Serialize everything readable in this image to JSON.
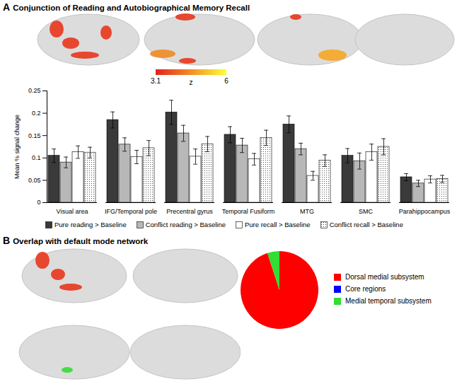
{
  "chart_data": [
    {
      "type": "bar",
      "panel_label": "A",
      "title": "Conjunction of Reading and Autobiographical Memory Recall",
      "ylabel": "Mean % signal change",
      "categories": [
        "Visual area",
        "IFG/Temporal pole",
        "Precentral gyrus",
        "Temporal Fusiform",
        "MTG",
        "SMC",
        "Parahippocampus"
      ],
      "series": [
        {
          "name": "Pure reading > Baseline",
          "color": "#3a3a3a",
          "values": [
            0.105,
            0.185,
            0.202,
            0.152,
            0.175,
            0.105,
            0.057
          ],
          "errors": [
            0.015,
            0.018,
            0.027,
            0.018,
            0.019,
            0.016,
            0.008
          ]
        },
        {
          "name": "Conflict reading > Baseline",
          "color": "#b8b8b8",
          "values": [
            0.09,
            0.13,
            0.155,
            0.128,
            0.12,
            0.093,
            0.043
          ],
          "errors": [
            0.012,
            0.015,
            0.018,
            0.016,
            0.013,
            0.018,
            0.007
          ]
        },
        {
          "name": "Pure recall > Baseline",
          "color": "#ffffff",
          "values": [
            0.113,
            0.102,
            0.103,
            0.097,
            0.06,
            0.113,
            0.052
          ],
          "errors": [
            0.014,
            0.015,
            0.017,
            0.013,
            0.01,
            0.018,
            0.008
          ]
        },
        {
          "name": "Conflict recall > Baseline",
          "color": "#ffffff",
          "marker": "dots",
          "values": [
            0.112,
            0.122,
            0.131,
            0.145,
            0.094,
            0.125,
            0.053
          ],
          "errors": [
            0.012,
            0.017,
            0.017,
            0.017,
            0.013,
            0.018,
            0.008
          ]
        }
      ],
      "ylim": [
        0,
        0.25
      ],
      "yticks": [
        0,
        0.05,
        0.1,
        0.15,
        0.2,
        0.25
      ],
      "grid": false,
      "legend": "bottom",
      "colorbar": {
        "label": "z",
        "range": [
          3.1,
          6
        ],
        "ticks": [
          3.1,
          6
        ],
        "colors": [
          "#e3211c",
          "#ffff33"
        ]
      }
    },
    {
      "type": "pie",
      "panel_label": "B",
      "title": "Overlap with default mode network",
      "categories": [
        "Dorsal medial subsystem",
        "Core regions",
        "Medial temporal subsystem"
      ],
      "values": [
        95,
        0,
        5
      ],
      "colors": [
        "#ff0000",
        "#0000ff",
        "#33dd33"
      ],
      "legend": "right"
    }
  ]
}
